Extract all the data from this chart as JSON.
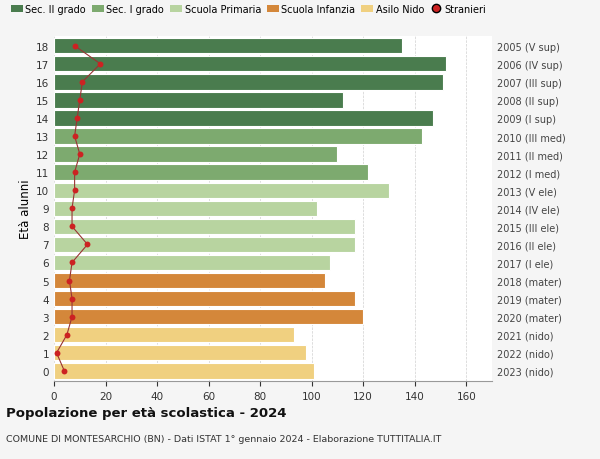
{
  "ages": [
    18,
    17,
    16,
    15,
    14,
    13,
    12,
    11,
    10,
    9,
    8,
    7,
    6,
    5,
    4,
    3,
    2,
    1,
    0
  ],
  "right_labels": [
    "2005 (V sup)",
    "2006 (IV sup)",
    "2007 (III sup)",
    "2008 (II sup)",
    "2009 (I sup)",
    "2010 (III med)",
    "2011 (II med)",
    "2012 (I med)",
    "2013 (V ele)",
    "2014 (IV ele)",
    "2015 (III ele)",
    "2016 (II ele)",
    "2017 (I ele)",
    "2018 (mater)",
    "2019 (mater)",
    "2020 (mater)",
    "2021 (nido)",
    "2022 (nido)",
    "2023 (nido)"
  ],
  "bar_values": [
    135,
    152,
    151,
    112,
    147,
    143,
    110,
    122,
    130,
    102,
    117,
    117,
    107,
    105,
    117,
    120,
    93,
    98,
    101
  ],
  "bar_colors": [
    "#4a7c4e",
    "#4a7c4e",
    "#4a7c4e",
    "#4a7c4e",
    "#4a7c4e",
    "#7daa6f",
    "#7daa6f",
    "#7daa6f",
    "#b8d4a0",
    "#b8d4a0",
    "#b8d4a0",
    "#b8d4a0",
    "#b8d4a0",
    "#d4873a",
    "#d4873a",
    "#d4873a",
    "#f0d080",
    "#f0d080",
    "#f0d080"
  ],
  "stranieri_values": [
    8,
    18,
    11,
    10,
    9,
    8,
    10,
    8,
    8,
    7,
    7,
    13,
    7,
    6,
    7,
    7,
    5,
    1,
    4
  ],
  "legend_labels": [
    "Sec. II grado",
    "Sec. I grado",
    "Scuola Primaria",
    "Scuola Infanzia",
    "Asilo Nido",
    "Stranieri"
  ],
  "legend_colors": [
    "#4a7c4e",
    "#7daa6f",
    "#b8d4a0",
    "#d4873a",
    "#f0d080",
    "#cc2222"
  ],
  "title": "Popolazione per età scolastica - 2024",
  "subtitle": "COMUNE DI MONTESARCHIO (BN) - Dati ISTAT 1° gennaio 2024 - Elaborazione TUTTITALIA.IT",
  "ylabel_left": "Età alunni",
  "xlim": [
    0,
    170
  ],
  "xticks": [
    0,
    20,
    40,
    60,
    80,
    100,
    120,
    140,
    160
  ],
  "background_color": "#f5f5f5",
  "plot_bg_color": "#ffffff",
  "bar_height": 0.85,
  "stranieri_color": "#cc2222",
  "stranieri_line_color": "#993333"
}
